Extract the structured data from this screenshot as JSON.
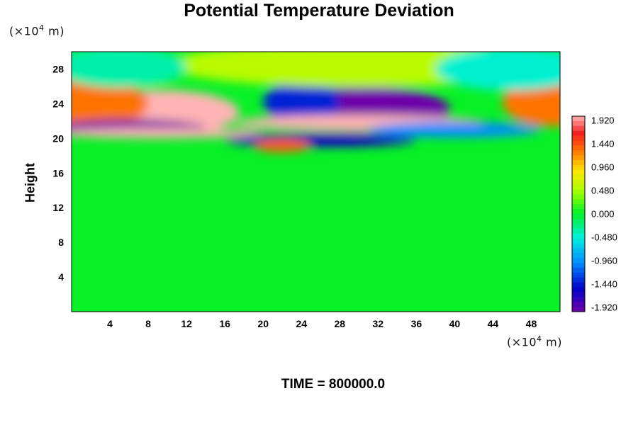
{
  "chart_data": {
    "type": "heatmap",
    "title": "Potential Temperature Deviation",
    "ylabel": "Height",
    "y_unit": {
      "prefix": "(×10",
      "exp": "4",
      "suffix": " m)"
    },
    "x_unit": {
      "prefix": "(×10",
      "exp": "4",
      "suffix": " m)"
    },
    "xlim": [
      0,
      51
    ],
    "ylim": [
      0,
      30
    ],
    "x_ticks": [
      "4",
      "8",
      "12",
      "16",
      "20",
      "24",
      "28",
      "32",
      "36",
      "40",
      "44",
      "48"
    ],
    "y_ticks": [
      "4",
      "8",
      "12",
      "16",
      "20",
      "24",
      "28"
    ],
    "colorbar": {
      "min": -2.0,
      "max": 2.0,
      "labels": [
        "1.920",
        "1.440",
        "0.960",
        "0.480",
        "0.000",
        "-0.480",
        "-0.960",
        "-1.440",
        "-1.920"
      ]
    },
    "features": [
      {
        "x": 9.5,
        "y": 23.0,
        "value": 2.0
      },
      {
        "x": 2.0,
        "y": 24.0,
        "value": 1.3
      },
      {
        "x": 50.0,
        "y": 24.2,
        "value": 1.3
      },
      {
        "x": 30.5,
        "y": 23.4,
        "value": -2.0
      },
      {
        "x": 24.0,
        "y": 24.2,
        "value": -1.4
      },
      {
        "x": 6.0,
        "y": 21.2,
        "value": -2.0
      },
      {
        "x": 30.0,
        "y": 21.8,
        "value": 2.0
      },
      {
        "x": 9.0,
        "y": 20.6,
        "value": 2.0
      },
      {
        "x": 26.0,
        "y": 19.8,
        "value": -1.6
      },
      {
        "x": 40.0,
        "y": 21.0,
        "value": -1.0
      },
      {
        "x": 22.0,
        "y": 19.2,
        "value": 1.4
      },
      {
        "x": 30.0,
        "y": 28.5,
        "value": 0.55
      },
      {
        "x": 46.0,
        "y": 28.0,
        "value": -0.45
      },
      {
        "x": 5.0,
        "y": 28.2,
        "value": -0.35
      }
    ]
  },
  "footer": {
    "time_label": "TIME = 800000.0"
  }
}
